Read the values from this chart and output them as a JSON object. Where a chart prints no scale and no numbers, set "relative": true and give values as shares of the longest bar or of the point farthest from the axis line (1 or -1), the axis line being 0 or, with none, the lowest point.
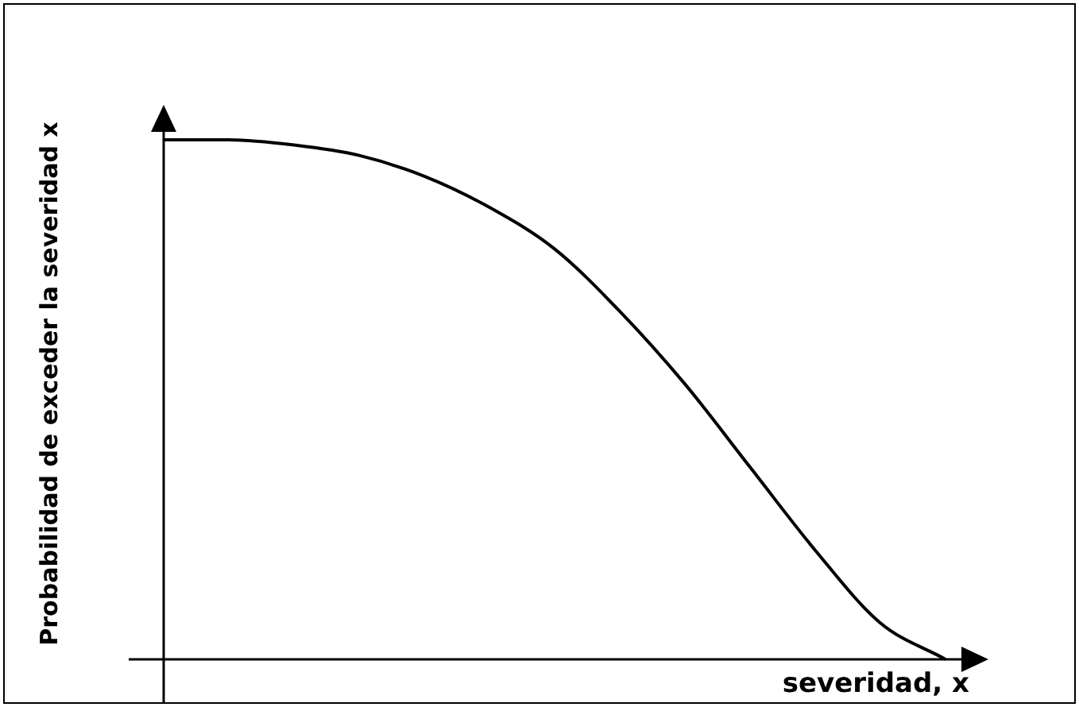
{
  "chart_data": {
    "type": "line",
    "relative": true,
    "xlabel": "severidad, x",
    "ylabel": "Probabilidad de exceder la severidad x",
    "categories": [
      null,
      null,
      null,
      null,
      null,
      null,
      null,
      null,
      null,
      null,
      null,
      null,
      null
    ],
    "series": [
      {
        "color": "#000000",
        "values": [
          1.0,
          1.0,
          0.99,
          0.97,
          0.93,
          0.87,
          0.79,
          0.67,
          0.53,
          0.37,
          0.21,
          0.07,
          0.0
        ]
      }
    ],
    "marker": "none",
    "line_style": "solid"
  }
}
